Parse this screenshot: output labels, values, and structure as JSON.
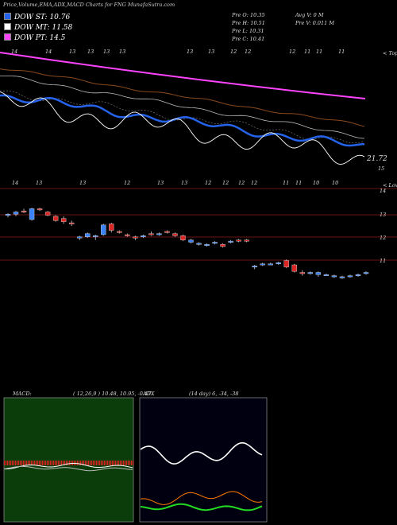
{
  "header": {
    "title": "Price,Volume,EMA,ADX,MACD Charts for FNG MunafaSutra.com"
  },
  "legend": [
    {
      "label": "DOW ST: 10.76",
      "color": "#2563eb"
    },
    {
      "label": "DOW MT: 11.58",
      "color": "#ffffff"
    },
    {
      "label": "DOW PT: 14.5",
      "color": "#ff44ff"
    }
  ],
  "ohlc": {
    "open": "Pre  O: 10.35",
    "high": "Pre  H: 10.51",
    "low": "Pre  L: 10.31",
    "close": "Pre  C: 10.41",
    "avg_volume": "Avg V: 0  M",
    "pre_volume": "Pre  V: 0.011 M"
  },
  "top_panel": {
    "date_labels": [
      "14",
      "14",
      "13",
      "13",
      "13",
      "13",
      "13",
      "13",
      "12",
      "12",
      "12",
      "11",
      "11",
      "11"
    ],
    "right_label": "< Tops",
    "last_value": "21.72",
    "scale_value": "15"
  },
  "mid_panel": {
    "date_labels": [
      "14",
      "13",
      "13",
      "12",
      "13",
      "13",
      "12",
      "12",
      "12",
      "12",
      "11",
      "11",
      "10",
      "10"
    ],
    "right_label": "< Lows",
    "y_ticks": [
      "14",
      "13",
      "12",
      "11"
    ]
  },
  "macd": {
    "label": "MACD:",
    "values": "( 12,26,9 ) 10.48,  10.95,  -0.47"
  },
  "adx": {
    "label": "ADX",
    "values": "(14  day) 6,  -34,  -38"
  },
  "chart_data": {
    "type": "candlestick",
    "symbol": "FNG",
    "ohlc": [
      [
        13.25,
        13.35,
        13.15,
        13.3
      ],
      [
        13.3,
        13.45,
        13.2,
        13.4
      ],
      [
        13.45,
        13.55,
        13.35,
        13.4
      ],
      [
        13.05,
        13.6,
        13.0,
        13.55
      ],
      [
        13.55,
        13.6,
        13.45,
        13.5
      ],
      [
        13.4,
        13.45,
        13.2,
        13.25
      ],
      [
        13.2,
        13.25,
        12.95,
        13.0
      ],
      [
        13.1,
        13.2,
        12.85,
        12.95
      ],
      [
        12.9,
        13.0,
        12.75,
        12.85
      ],
      [
        12.2,
        12.3,
        12.1,
        12.25
      ],
      [
        12.25,
        12.45,
        12.2,
        12.4
      ],
      [
        12.25,
        12.35,
        12.1,
        12.3
      ],
      [
        12.35,
        12.85,
        12.3,
        12.8
      ],
      [
        12.85,
        12.9,
        12.45,
        12.55
      ],
      [
        12.5,
        12.55,
        12.4,
        12.45
      ],
      [
        12.35,
        12.4,
        12.25,
        12.3
      ],
      [
        12.25,
        12.3,
        12.1,
        12.2
      ],
      [
        12.25,
        12.35,
        12.2,
        12.3
      ],
      [
        12.4,
        12.5,
        12.3,
        12.35
      ],
      [
        12.4,
        12.45,
        12.3,
        12.4
      ],
      [
        12.5,
        12.55,
        12.4,
        12.45
      ],
      [
        12.4,
        12.45,
        12.25,
        12.3
      ],
      [
        12.3,
        12.35,
        12.05,
        12.1
      ],
      [
        12.0,
        12.15,
        11.95,
        12.1
      ],
      [
        11.9,
        12.0,
        11.85,
        11.95
      ],
      [
        11.85,
        11.95,
        11.8,
        11.9
      ],
      [
        11.95,
        12.05,
        11.9,
        12.0
      ],
      [
        11.9,
        11.95,
        11.75,
        11.8
      ],
      [
        12.0,
        12.1,
        11.95,
        12.05
      ],
      [
        12.1,
        12.15,
        12.0,
        12.05
      ],
      [
        12.1,
        12.15,
        12.0,
        12.05
      ],
      [
        10.85,
        10.95,
        10.75,
        10.9
      ],
      [
        10.95,
        11.05,
        10.9,
        11.0
      ],
      [
        11.0,
        11.05,
        10.95,
        11.0
      ],
      [
        11.05,
        11.1,
        10.95,
        11.05
      ],
      [
        11.15,
        11.2,
        10.8,
        10.85
      ],
      [
        10.95,
        11.0,
        10.6,
        10.65
      ],
      [
        10.6,
        10.7,
        10.45,
        10.55
      ],
      [
        10.55,
        10.65,
        10.5,
        10.6
      ],
      [
        10.5,
        10.65,
        10.4,
        10.6
      ],
      [
        10.5,
        10.55,
        10.45,
        10.5
      ],
      [
        10.45,
        10.5,
        10.35,
        10.45
      ],
      [
        10.35,
        10.45,
        10.3,
        10.4
      ],
      [
        10.4,
        10.5,
        10.35,
        10.45
      ],
      [
        10.45,
        10.55,
        10.4,
        10.5
      ],
      [
        10.55,
        10.65,
        10.5,
        10.6
      ]
    ],
    "ylim": [
      10.25,
      14.45
    ],
    "ema": {
      "pt_14_5": [
        14.4,
        14.35,
        14.3,
        14.25,
        14.2,
        14.15,
        14.1,
        14.05,
        14.0,
        13.95,
        13.9,
        13.85,
        13.8,
        13.75,
        13.7,
        13.65,
        13.6,
        13.55,
        13.5,
        13.45,
        13.4,
        13.35,
        13.3,
        13.25,
        13.2,
        13.15,
        13.1,
        13.05,
        13.0,
        12.95,
        12.9,
        12.85,
        12.8,
        12.75,
        12.7,
        12.65,
        12.6,
        12.55,
        12.5,
        12.45,
        12.4,
        12.35,
        12.3,
        12.25,
        12.2,
        12.15
      ]
    }
  }
}
